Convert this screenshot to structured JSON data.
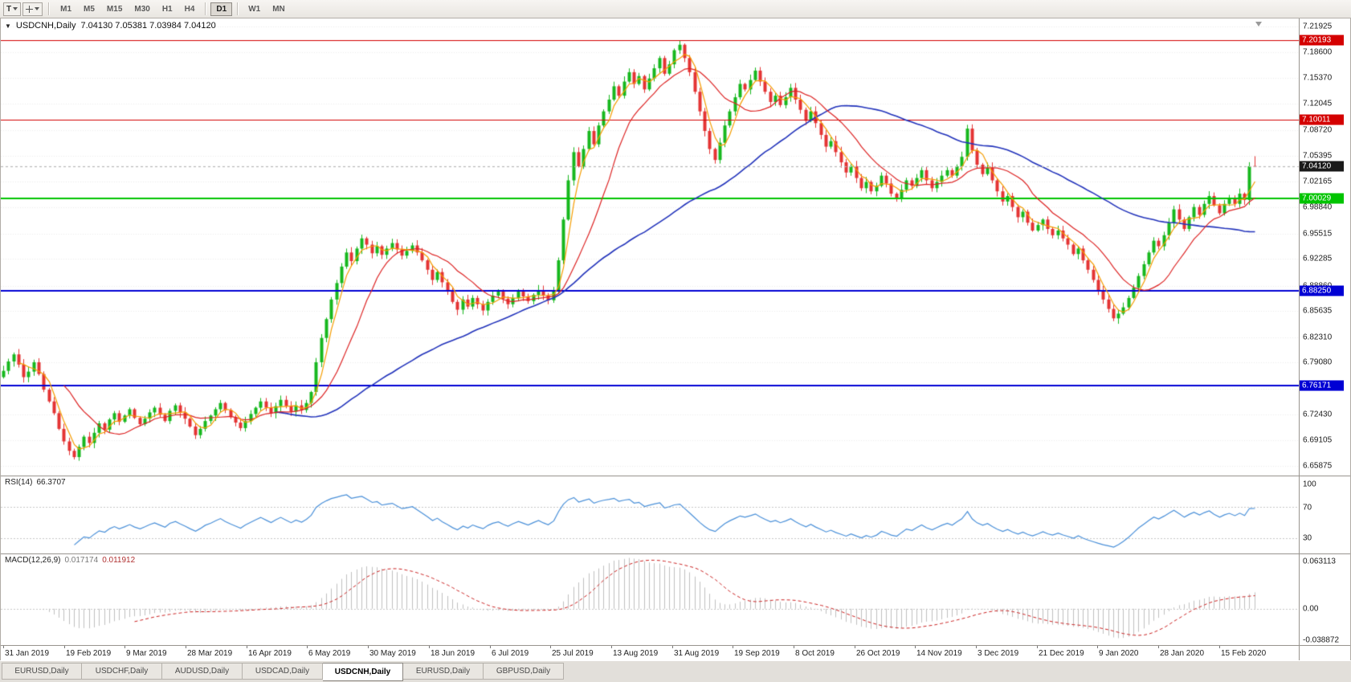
{
  "toolbar": {
    "tool_button_label": "T",
    "timeframes": [
      "M1",
      "M5",
      "M15",
      "M30",
      "H1",
      "H4",
      "D1",
      "W1",
      "MN"
    ],
    "active_timeframe": "D1"
  },
  "chart": {
    "menu_icon": "▼",
    "title_symbol": "USDCNH,Daily",
    "title_ohlc": "7.04130 7.05381 7.03984 7.04120",
    "current_price": {
      "label": "7.04120",
      "value": 7.0412,
      "badge_color": "#1a1a1a"
    },
    "price_axis": {
      "top": 7.21925,
      "bottom": 6.65875,
      "labels": [
        "7.21925",
        "7.18600",
        "7.15370",
        "7.12045",
        "7.08720",
        "7.05395",
        "7.02165",
        "6.98840",
        "6.95515",
        "6.92285",
        "6.88860",
        "6.85635",
        "6.82310",
        "6.79080",
        "6.75755",
        "6.72430",
        "6.69105",
        "6.65875"
      ]
    },
    "colors": {
      "up": "#17b81e",
      "down": "#e43434",
      "ma_fast": "#f59d00",
      "ma_mid": "#dd2222",
      "ma_slow": "#2233bb",
      "rsi": "#4a90d9",
      "macd_hist": "#c0c0c0",
      "macd_signal": "#cc2222"
    }
  },
  "rsi_panel": {
    "name": "RSI(14)",
    "value": "66.3707",
    "axis_labels": [
      "100",
      "70",
      "30"
    ],
    "upper_level": 70,
    "lower_level": 30
  },
  "macd_panel": {
    "name": "MACD(12,26,9)",
    "value_main": "0.017174",
    "value_signal": "0.011912",
    "axis_labels": [
      "0.063113",
      "0.00",
      "-0.038872"
    ]
  },
  "tabs": {
    "items": [
      "EURUSD,Daily",
      "USDCHF,Daily",
      "AUDUSD,Daily",
      "USDCAD,Daily",
      "USDCNH,Daily",
      "EURUSD,Daily",
      "GBPUSD,Daily"
    ],
    "active_index": 4
  },
  "chart_data": {
    "type": "candlestick",
    "symbol": "USDCNH",
    "timeframe": "Daily",
    "ylim": [
      6.65875,
      7.21925
    ],
    "x_labels": [
      "31 Jan 2019",
      "19 Feb 2019",
      "9 Mar 2019",
      "28 Mar 2019",
      "16 Apr 2019",
      "6 May 2019",
      "30 May 2019",
      "18 Jun 2019",
      "6 Jul 2019",
      "25 Jul 2019",
      "13 Aug 2019",
      "31 Aug 2019",
      "19 Sep 2019",
      "8 Oct 2019",
      "26 Oct 2019",
      "14 Nov 2019",
      "3 Dec 2019",
      "21 Dec 2019",
      "9 Jan 2020",
      "28 Jan 2020",
      "15 Feb 2020"
    ],
    "closes": [
      6.78,
      6.792,
      6.801,
      6.788,
      6.772,
      6.779,
      6.791,
      6.776,
      6.756,
      6.741,
      6.726,
      6.706,
      6.69,
      6.678,
      6.67,
      6.683,
      6.696,
      6.688,
      6.701,
      6.713,
      6.705,
      6.718,
      6.726,
      6.715,
      6.723,
      6.731,
      6.72,
      6.712,
      6.719,
      6.727,
      6.733,
      6.724,
      6.716,
      6.729,
      6.736,
      6.727,
      6.719,
      6.709,
      6.698,
      6.706,
      6.716,
      6.723,
      6.731,
      6.739,
      6.73,
      6.721,
      6.714,
      6.707,
      6.716,
      6.725,
      6.733,
      6.741,
      6.733,
      6.726,
      6.735,
      6.743,
      6.735,
      6.728,
      6.736,
      6.73,
      6.739,
      6.753,
      6.791,
      6.822,
      6.846,
      6.871,
      6.892,
      6.913,
      6.931,
      6.92,
      6.936,
      6.949,
      6.941,
      6.93,
      6.939,
      6.928,
      6.936,
      6.943,
      6.935,
      6.927,
      6.933,
      6.94,
      6.931,
      6.921,
      6.909,
      6.896,
      6.906,
      6.893,
      6.881,
      6.868,
      6.858,
      6.871,
      6.862,
      6.873,
      6.865,
      6.857,
      6.868,
      6.876,
      6.881,
      6.872,
      6.865,
      6.873,
      6.881,
      6.875,
      6.869,
      6.877,
      6.883,
      6.876,
      6.87,
      6.882,
      6.921,
      6.973,
      7.023,
      7.059,
      7.041,
      7.063,
      7.086,
      7.069,
      7.093,
      7.111,
      7.126,
      7.143,
      7.131,
      7.149,
      7.161,
      7.146,
      7.156,
      7.139,
      7.153,
      7.166,
      7.179,
      7.159,
      7.171,
      7.189,
      7.196,
      7.179,
      7.161,
      7.136,
      7.111,
      7.086,
      7.063,
      7.049,
      7.071,
      7.093,
      7.111,
      7.129,
      7.146,
      7.139,
      7.151,
      7.163,
      7.149,
      7.136,
      7.123,
      7.131,
      7.119,
      7.129,
      7.141,
      7.126,
      7.113,
      7.099,
      7.111,
      7.096,
      7.081,
      7.066,
      7.073,
      7.059,
      7.046,
      7.033,
      7.041,
      7.026,
      7.013,
      7.021,
      7.009,
      7.016,
      7.029,
      7.019,
      7.006,
      6.999,
      7.011,
      7.023,
      7.016,
      7.026,
      7.036,
      7.023,
      7.013,
      7.021,
      7.029,
      7.036,
      7.029,
      7.041,
      7.053,
      7.089,
      7.061,
      7.043,
      7.031,
      7.039,
      7.023,
      7.009,
      6.996,
      7.003,
      6.989,
      6.976,
      6.983,
      6.969,
      6.959,
      6.966,
      6.973,
      6.961,
      6.953,
      6.959,
      6.949,
      6.941,
      6.929,
      6.936,
      6.921,
      6.909,
      6.896,
      6.883,
      6.871,
      6.859,
      6.847,
      6.853,
      6.861,
      6.873,
      6.886,
      6.901,
      6.916,
      6.931,
      6.946,
      6.939,
      6.953,
      6.969,
      6.986,
      6.973,
      6.961,
      6.976,
      6.989,
      6.979,
      6.993,
      7.003,
      6.991,
      6.981,
      6.993,
      7.001,
      6.993,
      7.006,
      6.998,
      7.041,
      7.0412
    ],
    "last_candle": {
      "open": 7.0413,
      "high": 7.05381,
      "low": 7.03984,
      "close": 7.0412
    },
    "horizontal_lines": [
      {
        "label": "7.20193",
        "value": 7.20193,
        "color": "#d40000",
        "width": 1
      },
      {
        "label": "7.10011",
        "value": 7.10011,
        "color": "#d40000",
        "width": 1
      },
      {
        "label": "7.00029",
        "value": 7.00029,
        "color": "#00c400",
        "width": 2
      },
      {
        "label": "6.88250",
        "value": 6.8825,
        "color": "#0000d4",
        "width": 2
      },
      {
        "label": "6.76171",
        "value": 6.76171,
        "color": "#0000d4",
        "width": 2
      }
    ],
    "indicators": {
      "ma_fast_period": 4,
      "ma_mid_period": 13,
      "ma_slow_period": 55,
      "rsi_period": 14,
      "rsi_current": 66.3707,
      "macd_fast": 12,
      "macd_slow": 26,
      "macd_signal": 9,
      "macd_current": 0.017174,
      "macd_signal_current": 0.011912
    }
  }
}
